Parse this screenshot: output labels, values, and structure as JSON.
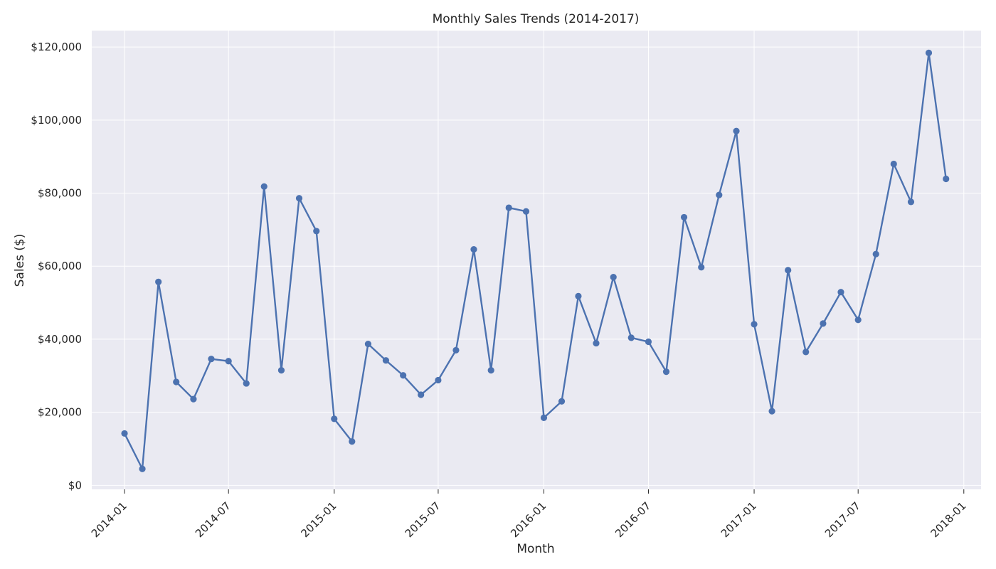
{
  "chart_data": {
    "type": "line",
    "title": "Monthly Sales Trends (2014-2017)",
    "xlabel": "Month",
    "ylabel": "Sales ($)",
    "x_tick_labels": [
      "2014-01",
      "2014-07",
      "2015-01",
      "2015-07",
      "2016-01",
      "2016-07",
      "2017-01",
      "2017-07",
      "2018-01"
    ],
    "y_tick_labels": [
      "$0",
      "$20,000",
      "$40,000",
      "$60,000",
      "$80,000",
      "$100,000",
      "$120,000"
    ],
    "y_ticks": [
      0,
      20000,
      40000,
      60000,
      80000,
      100000,
      120000
    ],
    "ylim": [
      -1100,
      124500
    ],
    "xlim": [
      "2013-11-05",
      "2018-01-31"
    ],
    "grid": true,
    "background": "#eaeaf2",
    "series": [
      {
        "color": "#4c72b0",
        "x": [
          "2014-01-01",
          "2014-02-01",
          "2014-03-01",
          "2014-04-01",
          "2014-05-01",
          "2014-06-01",
          "2014-07-01",
          "2014-08-01",
          "2014-09-01",
          "2014-10-01",
          "2014-11-01",
          "2014-12-01",
          "2015-01-01",
          "2015-02-01",
          "2015-03-01",
          "2015-04-01",
          "2015-05-01",
          "2015-06-01",
          "2015-07-01",
          "2015-08-01",
          "2015-09-01",
          "2015-10-01",
          "2015-11-01",
          "2015-12-01",
          "2016-01-01",
          "2016-02-01",
          "2016-03-01",
          "2016-04-01",
          "2016-05-01",
          "2016-06-01",
          "2016-07-01",
          "2016-08-01",
          "2016-09-01",
          "2016-10-01",
          "2016-11-01",
          "2016-12-01",
          "2017-01-01",
          "2017-02-01",
          "2017-03-01",
          "2017-04-01",
          "2017-05-01",
          "2017-06-01",
          "2017-07-01",
          "2017-08-01",
          "2017-09-01",
          "2017-10-01",
          "2017-11-01",
          "2017-12-01"
        ],
        "values": [
          14200,
          4500,
          55700,
          28300,
          23600,
          34600,
          34000,
          27900,
          81800,
          31500,
          78600,
          69600,
          18200,
          12000,
          38700,
          34200,
          30100,
          24800,
          28800,
          37000,
          64600,
          31500,
          76000,
          75000,
          18500,
          23000,
          51800,
          38900,
          57000,
          40400,
          39300,
          31100,
          73400,
          59700,
          79500,
          97000,
          44100,
          20300,
          58900,
          36500,
          44300,
          52900,
          45300,
          63300,
          88000,
          77600,
          118400,
          83900
        ]
      }
    ]
  }
}
